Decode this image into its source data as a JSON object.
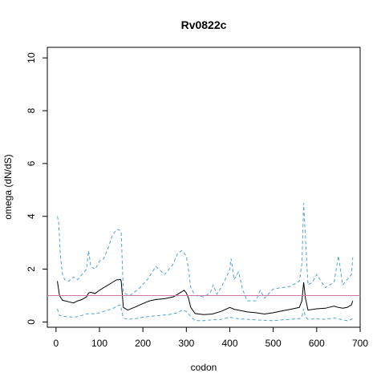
{
  "chart_data": {
    "type": "line",
    "title": "Rv0822c",
    "xlabel": "codon",
    "ylabel": "omega (dN/dS)",
    "xlim": [
      -20,
      700
    ],
    "ylim": [
      -0.2,
      10.4
    ],
    "xticks": [
      0,
      100,
      200,
      300,
      400,
      500,
      600,
      700
    ],
    "yticks": [
      0,
      2,
      4,
      6,
      8,
      10
    ],
    "reference_line": {
      "y": 1.0,
      "color": "#cc79a7"
    },
    "grid": false,
    "series": [
      {
        "role": "estimate",
        "color": "#000000",
        "style": "solid",
        "x": [
          3,
          8,
          15,
          25,
          40,
          50,
          60,
          70,
          75,
          80,
          90,
          100,
          110,
          120,
          130,
          140,
          145,
          148,
          150,
          155,
          165,
          180,
          200,
          215,
          230,
          250,
          270,
          280,
          290,
          295,
          300,
          305,
          310,
          320,
          340,
          360,
          380,
          400,
          410,
          420,
          440,
          460,
          480,
          500,
          520,
          540,
          560,
          566,
          570,
          574,
          580,
          600,
          620,
          640,
          650,
          660,
          670,
          680,
          683
        ],
        "y": [
          1.55,
          1.0,
          0.82,
          0.78,
          0.72,
          0.8,
          0.85,
          0.95,
          1.1,
          1.12,
          1.08,
          1.2,
          1.3,
          1.4,
          1.5,
          1.6,
          1.6,
          1.62,
          1.55,
          0.55,
          0.45,
          0.55,
          0.7,
          0.8,
          0.85,
          0.88,
          0.95,
          1.05,
          1.15,
          1.2,
          1.1,
          0.9,
          0.55,
          0.32,
          0.28,
          0.3,
          0.4,
          0.55,
          0.48,
          0.45,
          0.38,
          0.35,
          0.3,
          0.35,
          0.42,
          0.48,
          0.55,
          0.8,
          1.5,
          0.9,
          0.45,
          0.5,
          0.52,
          0.6,
          0.55,
          0.52,
          0.55,
          0.65,
          0.8
        ]
      },
      {
        "role": "upper_bound",
        "color": "#4fa3d9",
        "style": "dashed",
        "x": [
          3,
          6,
          10,
          15,
          20,
          30,
          40,
          50,
          60,
          70,
          75,
          80,
          90,
          100,
          110,
          120,
          130,
          140,
          145,
          150,
          155,
          170,
          190,
          210,
          230,
          250,
          270,
          280,
          290,
          300,
          305,
          310,
          320,
          340,
          355,
          362,
          370,
          380,
          395,
          400,
          403,
          410,
          420,
          430,
          440,
          460,
          470,
          480,
          500,
          520,
          540,
          560,
          566,
          570,
          574,
          580,
          590,
          600,
          620,
          640,
          650,
          660,
          670,
          680,
          683
        ],
        "y": [
          4.0,
          3.8,
          2.5,
          1.8,
          1.6,
          1.55,
          1.7,
          1.6,
          1.8,
          2.0,
          2.7,
          2.1,
          2.0,
          2.3,
          2.4,
          2.8,
          3.3,
          3.5,
          3.5,
          3.4,
          1.1,
          1.0,
          1.25,
          1.6,
          2.1,
          1.8,
          2.2,
          2.6,
          2.7,
          2.5,
          2.0,
          1.3,
          1.0,
          0.95,
          1.1,
          1.4,
          1.05,
          1.3,
          1.8,
          2.0,
          2.4,
          1.6,
          1.9,
          1.2,
          0.8,
          0.8,
          1.2,
          0.9,
          1.25,
          1.3,
          1.35,
          1.55,
          2.2,
          4.5,
          3.2,
          1.4,
          1.5,
          1.8,
          1.3,
          1.5,
          2.5,
          1.4,
          1.6,
          1.8,
          2.45
        ]
      },
      {
        "role": "lower_bound",
        "color": "#4fa3d9",
        "style": "dashed",
        "x": [
          3,
          8,
          15,
          25,
          40,
          50,
          60,
          70,
          80,
          90,
          100,
          110,
          120,
          130,
          140,
          148,
          155,
          165,
          180,
          200,
          220,
          240,
          260,
          280,
          290,
          300,
          310,
          320,
          340,
          360,
          380,
          400,
          420,
          440,
          460,
          480,
          500,
          520,
          540,
          560,
          566,
          570,
          574,
          580,
          600,
          620,
          640,
          650,
          660,
          670,
          680,
          683
        ],
        "y": [
          0.5,
          0.25,
          0.22,
          0.2,
          0.18,
          0.2,
          0.25,
          0.3,
          0.32,
          0.3,
          0.35,
          0.4,
          0.45,
          0.5,
          0.6,
          0.65,
          0.15,
          0.1,
          0.12,
          0.18,
          0.22,
          0.25,
          0.28,
          0.35,
          0.45,
          0.4,
          0.2,
          0.05,
          0.05,
          0.08,
          0.1,
          0.18,
          0.12,
          0.1,
          0.08,
          0.06,
          0.05,
          0.08,
          0.1,
          0.12,
          0.2,
          0.5,
          0.2,
          0.1,
          0.12,
          0.1,
          0.15,
          0.12,
          0.08,
          0.05,
          0.1,
          0.15
        ]
      }
    ]
  }
}
